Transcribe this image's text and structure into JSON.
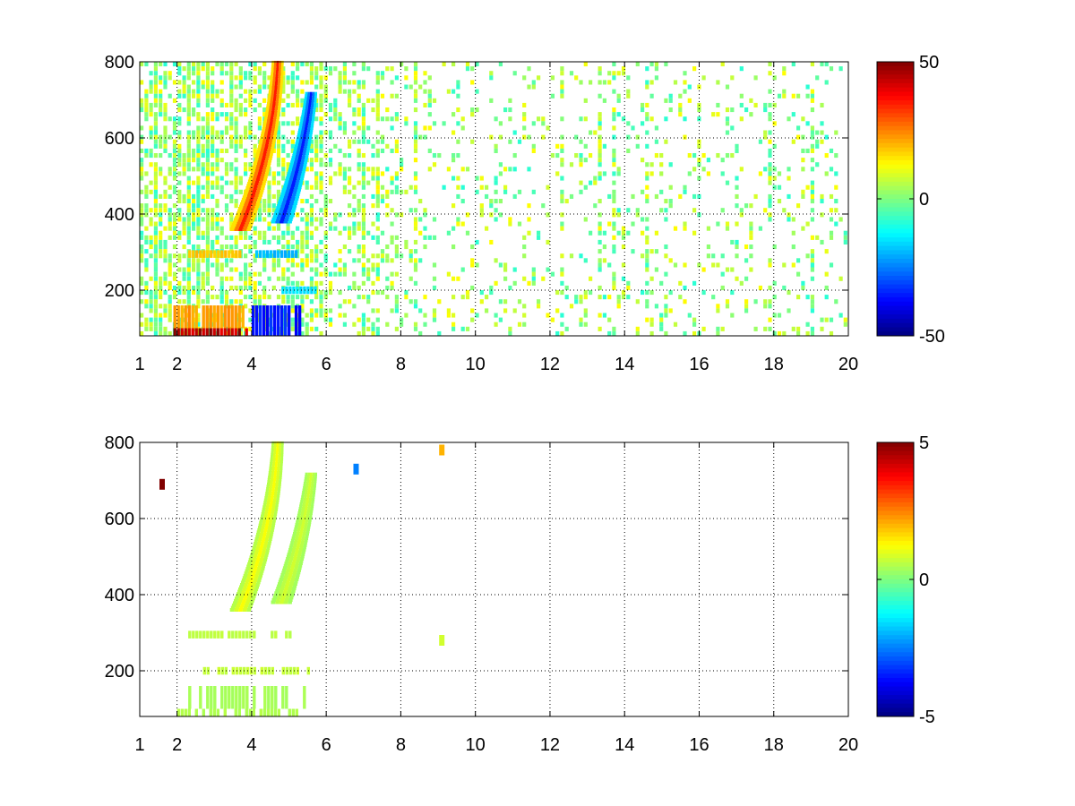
{
  "chart_data": [
    {
      "type": "heatmap",
      "title": "",
      "xlabel": "",
      "ylabel": "",
      "xlim": [
        1,
        20
      ],
      "ylim": [
        80,
        800
      ],
      "x_ticks": [
        1,
        2,
        4,
        6,
        8,
        10,
        12,
        14,
        16,
        18,
        20
      ],
      "y_ticks": [
        200,
        400,
        600,
        800
      ],
      "grid": true,
      "colormap": "jet",
      "colorbar": {
        "range": [
          -50,
          50
        ],
        "ticks": [
          50,
          0,
          -50
        ]
      },
      "features": [
        {
          "kind": "band",
          "x": [
            1.9,
            3.9
          ],
          "y": [
            80,
            100
          ],
          "value": 45
        },
        {
          "kind": "band",
          "x": [
            1.9,
            3.8
          ],
          "y": [
            100,
            160
          ],
          "value": 22
        },
        {
          "kind": "band",
          "x": [
            4.0,
            5.4
          ],
          "y": [
            80,
            160
          ],
          "value": -35
        },
        {
          "kind": "band",
          "x": [
            2.3,
            3.7
          ],
          "y": [
            285,
            305
          ],
          "value": 18
        },
        {
          "kind": "band",
          "x": [
            4.0,
            5.2
          ],
          "y": [
            285,
            305
          ],
          "value": -20
        },
        {
          "kind": "band",
          "x": [
            4.8,
            5.7
          ],
          "y": [
            190,
            210
          ],
          "value": -15
        },
        {
          "kind": "arc",
          "y_start": 360,
          "y_end": 800,
          "x_start": 3.7,
          "x_mid": 4.6,
          "x_end": 4.7,
          "value": 35
        },
        {
          "kind": "arc",
          "y_start": 380,
          "y_end": 720,
          "x_start": 4.8,
          "x_mid": 5.4,
          "x_end": 5.6,
          "value": -35
        }
      ]
    },
    {
      "type": "heatmap",
      "title": "",
      "xlabel": "",
      "ylabel": "",
      "xlim": [
        1,
        20
      ],
      "ylim": [
        80,
        800
      ],
      "x_ticks": [
        1,
        2,
        4,
        6,
        8,
        10,
        12,
        14,
        16,
        18,
        20
      ],
      "y_ticks": [
        200,
        400,
        600,
        800
      ],
      "grid": true,
      "colormap": "jet",
      "colorbar": {
        "range": [
          -5,
          5
        ],
        "ticks": [
          5,
          0,
          -5
        ]
      },
      "features": [
        {
          "kind": "band",
          "x": [
            2.0,
            5.4
          ],
          "y": [
            80,
            100
          ],
          "value": 0.5
        },
        {
          "kind": "band",
          "x": [
            2.3,
            5.4
          ],
          "y": [
            100,
            160
          ],
          "value": 0.4
        },
        {
          "kind": "band",
          "x": [
            2.3,
            5.0
          ],
          "y": [
            285,
            305
          ],
          "value": 0.6
        },
        {
          "kind": "band",
          "x": [
            2.6,
            5.7
          ],
          "y": [
            190,
            210
          ],
          "value": 0.7
        },
        {
          "kind": "arc",
          "y_start": 360,
          "y_end": 800,
          "x_start": 3.7,
          "x_mid": 4.6,
          "x_end": 4.7,
          "value": 1.2
        },
        {
          "kind": "arc",
          "y_start": 380,
          "y_end": 720,
          "x_start": 4.8,
          "x_mid": 5.4,
          "x_end": 5.6,
          "value": 0.8
        },
        {
          "kind": "spot",
          "x": 6.8,
          "y": 730,
          "value": -2.5
        },
        {
          "kind": "spot",
          "x": 9.1,
          "y": 780,
          "value": 2.0
        },
        {
          "kind": "spot",
          "x": 9.1,
          "y": 280,
          "value": 0.8
        },
        {
          "kind": "spot",
          "x": 1.6,
          "y": 690,
          "value": 5.0
        }
      ]
    }
  ]
}
